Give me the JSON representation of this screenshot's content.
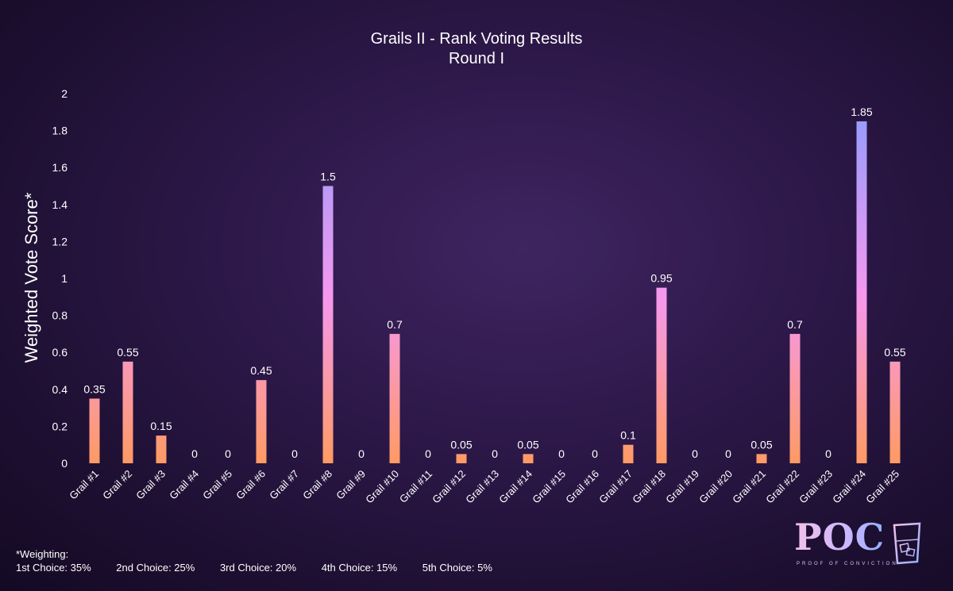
{
  "chart_data": {
    "type": "bar",
    "title": "Grails II - Rank Voting Results",
    "subtitle": "Round I",
    "xlabel": "",
    "ylabel": "Weighted Vote Score*",
    "ylim": [
      0,
      2
    ],
    "yticks": [
      0,
      0.2,
      0.4,
      0.6,
      0.8,
      1,
      1.2,
      1.4,
      1.6,
      1.8,
      2
    ],
    "grid": false,
    "categories": [
      "Grail #1",
      "Grail #2",
      "Grail #3",
      "Grail #4",
      "Grail #5",
      "Grail #6",
      "Grail #7",
      "Grail #8",
      "Grail #9",
      "Grail #10",
      "Grail #11",
      "Grail #12",
      "Grail #13",
      "Grail #14",
      "Grail #15",
      "Grail #16",
      "Grail #17",
      "Grail #18",
      "Grail #19",
      "Grail #20",
      "Grail #21",
      "Grail #22",
      "Grail #23",
      "Grail #24",
      "Grail #25"
    ],
    "values": [
      0.35,
      0.55,
      0.15,
      0,
      0,
      0.45,
      0,
      1.5,
      0,
      0.7,
      0,
      0.05,
      0,
      0.05,
      0,
      0,
      0.1,
      0.95,
      0,
      0,
      0.05,
      0.7,
      0,
      1.85,
      0.55
    ],
    "data_labels": [
      "0.35",
      "0.55",
      "0.15",
      "0",
      "0",
      "0.45",
      "0",
      "1.5",
      "0",
      "0.7",
      "0",
      "0.05",
      "0",
      "0.05",
      "0",
      "0",
      "0.1",
      "0.95",
      "0",
      "0",
      "0.05",
      "0.7",
      "0",
      "1.85",
      "0.55"
    ],
    "colors": {
      "bar_bottom": "#ff9a63",
      "bar_mid": "#f598ee",
      "bar_top": "#8c9cff",
      "text": "#ffffff",
      "background": "#2d1849"
    }
  },
  "footnote": {
    "heading": "*Weighting:",
    "items": [
      "1st Choice: 35%",
      "2nd Choice: 25%",
      "3rd Choice: 20%",
      "4th Choice: 15%",
      "5th Choice: 5%"
    ]
  },
  "logo": {
    "text": "POC",
    "tagline": "PROOF OF CONVICTION",
    "icon": "whiskey-glass-icon"
  }
}
